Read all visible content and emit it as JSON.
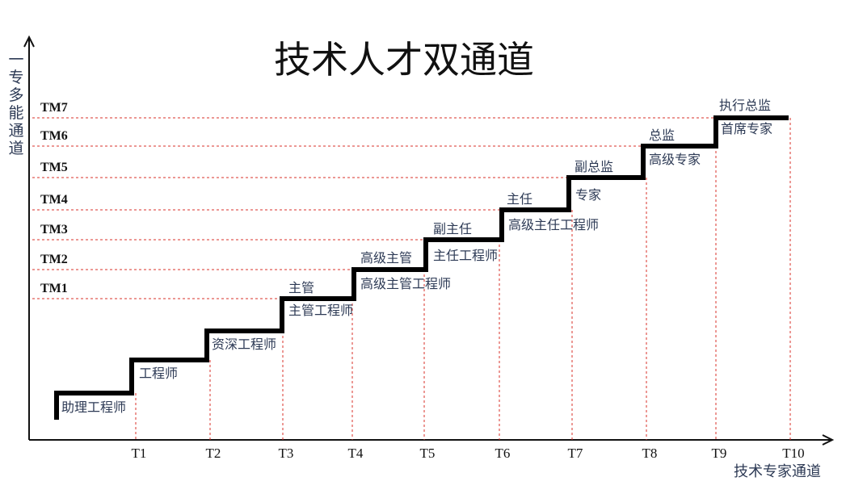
{
  "title": "技术人才双通道",
  "y_axis_label": "一专多能通道",
  "x_axis_label": "技术专家通道",
  "colors": {
    "staircase": "#000000",
    "guide": "#d9302a",
    "text": "#2d3a55",
    "axis": "#111111"
  },
  "management_levels": [
    "TM1",
    "TM2",
    "TM3",
    "TM4",
    "TM5",
    "TM6",
    "TM7"
  ],
  "tech_levels": [
    "T1",
    "T2",
    "T3",
    "T4",
    "T5",
    "T6",
    "T7",
    "T8",
    "T9",
    "T10"
  ],
  "tech_roles": [
    "助理工程师",
    "工程师",
    "资深工程师",
    "主管工程师",
    "高级主管工程师",
    "主任工程师",
    "高级主任工程师",
    "专家",
    "高级专家",
    "首席专家"
  ],
  "mgmt_roles": [
    "主管",
    "高级主管",
    "副主任",
    "主任",
    "副总监",
    "总监",
    "执行总监"
  ]
}
